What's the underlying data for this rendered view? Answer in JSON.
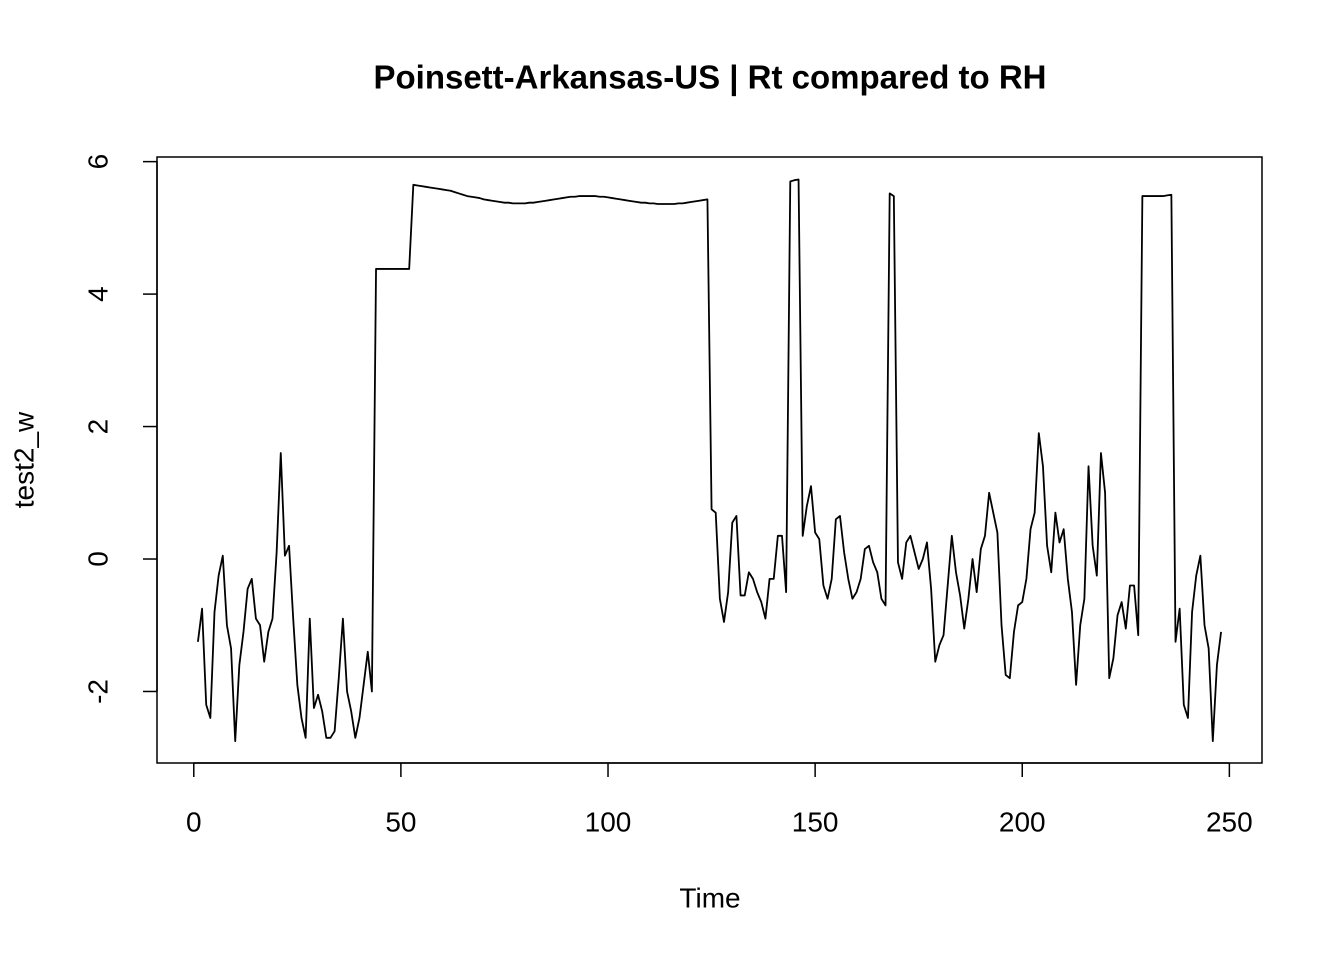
{
  "chart_data": {
    "type": "line",
    "title": "Poinsett-Arkansas-US | Rt compared to RH",
    "x_label": "Time",
    "y_label": "test2_w",
    "x": [
      1,
      2,
      3,
      4,
      5,
      6,
      7,
      8,
      9,
      10,
      11,
      12,
      13,
      14,
      15,
      16,
      17,
      18,
      19,
      20,
      21,
      22,
      23,
      24,
      25,
      26,
      27,
      28,
      29,
      30,
      31,
      32,
      33,
      34,
      35,
      36,
      37,
      38,
      39,
      40,
      41,
      42,
      43,
      44,
      45,
      46,
      47,
      48,
      49,
      50,
      51,
      52,
      53,
      54,
      55,
      56,
      57,
      58,
      59,
      60,
      61,
      62,
      63,
      64,
      65,
      66,
      67,
      68,
      69,
      70,
      71,
      72,
      73,
      74,
      75,
      76,
      77,
      78,
      79,
      80,
      81,
      82,
      83,
      84,
      85,
      86,
      87,
      88,
      89,
      90,
      91,
      92,
      93,
      94,
      95,
      96,
      97,
      98,
      99,
      100,
      101,
      102,
      103,
      104,
      105,
      106,
      107,
      108,
      109,
      110,
      111,
      112,
      113,
      114,
      115,
      116,
      117,
      118,
      119,
      120,
      121,
      122,
      123,
      124,
      125,
      126,
      127,
      128,
      129,
      130,
      131,
      132,
      133,
      134,
      135,
      136,
      137,
      138,
      139,
      140,
      141,
      142,
      143,
      144,
      145,
      146,
      147,
      148,
      149,
      150,
      151,
      152,
      153,
      154,
      155,
      156,
      157,
      158,
      159,
      160,
      161,
      162,
      163,
      164,
      165,
      166,
      167,
      168,
      169,
      170,
      171,
      172,
      173,
      174,
      175,
      176,
      177,
      178,
      179,
      180,
      181,
      182,
      183,
      184,
      185,
      186,
      187,
      188,
      189,
      190,
      191,
      192,
      193,
      194,
      195,
      196,
      197,
      198,
      199,
      200,
      201,
      202,
      203,
      204,
      205,
      206,
      207,
      208,
      209,
      210,
      211,
      212,
      213,
      214,
      215,
      216,
      217,
      218,
      219,
      220,
      221,
      222,
      223,
      224,
      225,
      226,
      227,
      228,
      229,
      230,
      231,
      232,
      233,
      234,
      235,
      236,
      237,
      238,
      239,
      240,
      241,
      242,
      243,
      244,
      245,
      246,
      247,
      248
    ],
    "series": [
      {
        "name": "test2_w",
        "color": "#000000",
        "values": [
          -1.25,
          -0.75,
          -2.2,
          -2.4,
          -0.8,
          -0.25,
          0.05,
          -1.0,
          -1.35,
          -2.75,
          -1.6,
          -1.1,
          -0.45,
          -0.3,
          -0.9,
          -1.0,
          -1.55,
          -1.1,
          -0.9,
          0.1,
          1.6,
          0.05,
          0.2,
          -0.9,
          -1.9,
          -2.4,
          -2.7,
          -0.9,
          -2.25,
          -2.05,
          -2.3,
          -2.7,
          -2.7,
          -2.6,
          -1.8,
          -0.9,
          -2.0,
          -2.3,
          -2.7,
          -2.4,
          -1.9,
          -1.4,
          -2.0,
          4.38,
          4.38,
          4.38,
          4.38,
          4.38,
          4.38,
          4.38,
          4.38,
          4.38,
          5.65,
          5.64,
          5.63,
          5.62,
          5.61,
          5.6,
          5.59,
          5.58,
          5.57,
          5.56,
          5.54,
          5.52,
          5.5,
          5.48,
          5.47,
          5.46,
          5.45,
          5.43,
          5.42,
          5.41,
          5.4,
          5.39,
          5.38,
          5.38,
          5.37,
          5.37,
          5.37,
          5.37,
          5.38,
          5.38,
          5.39,
          5.4,
          5.41,
          5.42,
          5.43,
          5.44,
          5.45,
          5.46,
          5.47,
          5.47,
          5.48,
          5.48,
          5.48,
          5.48,
          5.48,
          5.47,
          5.47,
          5.46,
          5.45,
          5.44,
          5.43,
          5.42,
          5.41,
          5.4,
          5.39,
          5.38,
          5.38,
          5.37,
          5.37,
          5.36,
          5.36,
          5.36,
          5.36,
          5.36,
          5.37,
          5.37,
          5.38,
          5.39,
          5.4,
          5.41,
          5.42,
          5.43,
          0.75,
          0.7,
          -0.6,
          -0.95,
          -0.5,
          0.55,
          0.65,
          -0.55,
          -0.55,
          -0.2,
          -0.3,
          -0.5,
          -0.65,
          -0.9,
          -0.3,
          -0.3,
          0.35,
          0.35,
          -0.5,
          5.7,
          5.72,
          5.73,
          0.35,
          0.8,
          1.1,
          0.4,
          0.3,
          -0.4,
          -0.6,
          -0.3,
          0.6,
          0.65,
          0.1,
          -0.3,
          -0.6,
          -0.5,
          -0.3,
          0.15,
          0.2,
          -0.05,
          -0.2,
          -0.6,
          -0.7,
          5.52,
          5.48,
          -0.05,
          -0.3,
          0.25,
          0.35,
          0.1,
          -0.15,
          0.0,
          0.25,
          -0.45,
          -1.55,
          -1.3,
          -1.15,
          -0.4,
          0.35,
          -0.2,
          -0.55,
          -1.05,
          -0.6,
          0.0,
          -0.5,
          0.15,
          0.35,
          1.0,
          0.7,
          0.4,
          -1.0,
          -1.75,
          -1.8,
          -1.1,
          -0.7,
          -0.65,
          -0.3,
          0.45,
          0.7,
          1.9,
          1.4,
          0.2,
          -0.2,
          0.7,
          0.25,
          0.45,
          -0.3,
          -0.8,
          -1.9,
          -1.0,
          -0.6,
          1.4,
          0.2,
          -0.25,
          1.6,
          1.0,
          -1.8,
          -1.5,
          -0.85,
          -0.65,
          -1.05,
          -0.4,
          -0.4,
          -1.15,
          5.48,
          5.48,
          5.48,
          5.48,
          5.48,
          5.48,
          5.49,
          5.5,
          -1.25,
          -0.75,
          -2.2,
          -2.4,
          -0.8,
          -0.25,
          0.05,
          -1.0,
          -1.35,
          -2.75,
          -1.6,
          -1.1
        ]
      }
    ],
    "xlim": [
      -8.88,
      257.88
    ],
    "ylim": [
      -3.08,
      6.07
    ],
    "xticks": [
      0,
      50,
      100,
      150,
      200,
      250
    ],
    "yticks": [
      -2,
      0,
      2,
      4,
      6
    ],
    "grid": false
  }
}
